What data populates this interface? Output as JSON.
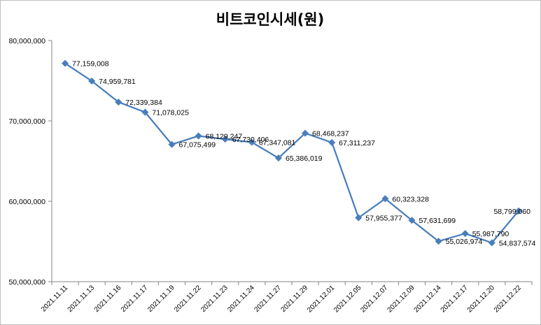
{
  "chart_data": {
    "type": "line",
    "title": "비트코인시세(원)",
    "xlabel": "",
    "ylabel": "",
    "ylim": [
      50000000,
      80000000
    ],
    "yticks": [
      50000000,
      60000000,
      70000000,
      80000000
    ],
    "ytick_labels": [
      "50,000,000",
      "60,000,000",
      "70,000,000",
      "80,000,000"
    ],
    "grid": false,
    "legend": "none",
    "categories": [
      "2021.11.11",
      "2021.11.13",
      "2021.11.16",
      "2021.11.17",
      "2021.11.19",
      "2021.11.22",
      "2021.11.23",
      "2021.11.24",
      "2021.11.27",
      "2021.11.29",
      "2021.12.01",
      "2021.12.05",
      "2021.12.07",
      "2021.12.09",
      "2021.12.14",
      "2021.12.17",
      "2021.12.20",
      "2021.12.22"
    ],
    "series": [
      {
        "name": "비트코인시세(원)",
        "color": "#4a7ebb",
        "values": [
          77159008,
          74959781,
          72339384,
          71078025,
          67075499,
          68129247,
          67730406,
          67347081,
          65386019,
          68468237,
          67311237,
          57955377,
          60323328,
          57631699,
          55026974,
          55987790,
          54837574,
          58799060
        ],
        "labels": [
          "77,159,008",
          "74,959,781",
          "72,339,384",
          "71,078,025",
          "67,075,499",
          "68,129,247",
          "67,730,406",
          "67,347,081",
          "65,386,019",
          "68,468,237",
          "67,311,237",
          "57,955,377",
          "60,323,328",
          "57,631,699",
          "55,026,974",
          "55,987,790",
          "54,837,574",
          "58,799,060"
        ]
      }
    ]
  }
}
